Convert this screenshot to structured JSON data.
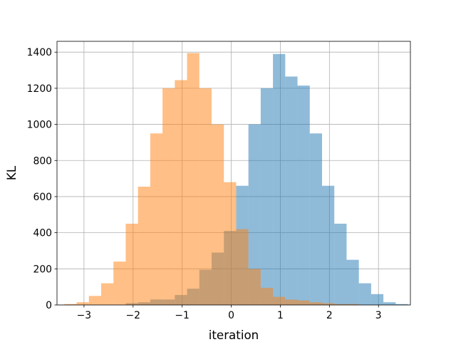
{
  "chart_data": {
    "type": "histogram",
    "xlabel": "iteration",
    "ylabel": "KL",
    "xlim": [
      -3.55,
      3.65
    ],
    "ylim": [
      0,
      1460
    ],
    "x_ticks": [
      -3,
      -2,
      -1,
      0,
      1,
      2,
      3
    ],
    "y_ticks": [
      0,
      200,
      400,
      600,
      800,
      1000,
      1200,
      1400
    ],
    "grid": true,
    "legend": "none",
    "series": [
      {
        "color": "#1f77b4",
        "alpha": 0.5,
        "bins": [
          {
            "x0": -2.15,
            "x1": -1.9,
            "count": 10
          },
          {
            "x0": -1.9,
            "x1": -1.65,
            "count": 15
          },
          {
            "x0": -1.65,
            "x1": -1.4,
            "count": 30
          },
          {
            "x0": -1.4,
            "x1": -1.15,
            "count": 30
          },
          {
            "x0": -1.15,
            "x1": -0.9,
            "count": 55
          },
          {
            "x0": -0.9,
            "x1": -0.65,
            "count": 90
          },
          {
            "x0": -0.65,
            "x1": -0.4,
            "count": 195
          },
          {
            "x0": -0.4,
            "x1": -0.15,
            "count": 290
          },
          {
            "x0": -0.15,
            "x1": 0.1,
            "count": 410
          },
          {
            "x0": 0.1,
            "x1": 0.35,
            "count": 660
          },
          {
            "x0": 0.35,
            "x1": 0.6,
            "count": 1000
          },
          {
            "x0": 0.6,
            "x1": 0.85,
            "count": 1200
          },
          {
            "x0": 0.85,
            "x1": 1.1,
            "count": 1390
          },
          {
            "x0": 1.1,
            "x1": 1.35,
            "count": 1265
          },
          {
            "x0": 1.35,
            "x1": 1.6,
            "count": 1215
          },
          {
            "x0": 1.6,
            "x1": 1.85,
            "count": 950
          },
          {
            "x0": 1.85,
            "x1": 2.1,
            "count": 660
          },
          {
            "x0": 2.1,
            "x1": 2.35,
            "count": 450
          },
          {
            "x0": 2.35,
            "x1": 2.6,
            "count": 250
          },
          {
            "x0": 2.6,
            "x1": 2.85,
            "count": 120
          },
          {
            "x0": 2.85,
            "x1": 3.1,
            "count": 60
          },
          {
            "x0": 3.1,
            "x1": 3.35,
            "count": 15
          },
          {
            "x0": 3.35,
            "x1": 3.6,
            "count": 5
          }
        ]
      },
      {
        "color": "#ff7f0e",
        "alpha": 0.5,
        "bins": [
          {
            "x0": -3.4,
            "x1": -3.15,
            "count": 5
          },
          {
            "x0": -3.15,
            "x1": -2.9,
            "count": 15
          },
          {
            "x0": -2.9,
            "x1": -2.65,
            "count": 50
          },
          {
            "x0": -2.65,
            "x1": -2.4,
            "count": 120
          },
          {
            "x0": -2.4,
            "x1": -2.15,
            "count": 240
          },
          {
            "x0": -2.15,
            "x1": -1.9,
            "count": 450
          },
          {
            "x0": -1.9,
            "x1": -1.65,
            "count": 655
          },
          {
            "x0": -1.65,
            "x1": -1.4,
            "count": 950
          },
          {
            "x0": -1.4,
            "x1": -1.15,
            "count": 1200
          },
          {
            "x0": -1.15,
            "x1": -0.9,
            "count": 1245
          },
          {
            "x0": -0.9,
            "x1": -0.65,
            "count": 1395
          },
          {
            "x0": -0.65,
            "x1": -0.4,
            "count": 1200
          },
          {
            "x0": -0.4,
            "x1": -0.15,
            "count": 1000
          },
          {
            "x0": -0.15,
            "x1": 0.1,
            "count": 680
          },
          {
            "x0": 0.1,
            "x1": 0.35,
            "count": 420
          },
          {
            "x0": 0.35,
            "x1": 0.6,
            "count": 200
          },
          {
            "x0": 0.6,
            "x1": 0.85,
            "count": 95
          },
          {
            "x0": 0.85,
            "x1": 1.1,
            "count": 45
          },
          {
            "x0": 1.1,
            "x1": 1.35,
            "count": 30
          },
          {
            "x0": 1.35,
            "x1": 1.6,
            "count": 25
          },
          {
            "x0": 1.6,
            "x1": 1.85,
            "count": 15
          },
          {
            "x0": 1.85,
            "x1": 2.1,
            "count": 10
          },
          {
            "x0": 2.1,
            "x1": 2.35,
            "count": 5
          },
          {
            "x0": 2.35,
            "x1": 2.6,
            "count": 5
          }
        ]
      }
    ]
  }
}
